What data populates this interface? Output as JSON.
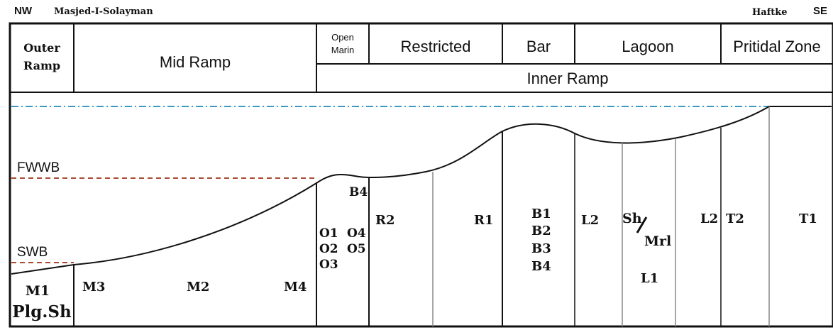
{
  "header": {
    "nw": "NW",
    "se": "SE",
    "left_location": "Masjed-I-Solayman",
    "right_location": "Haftke"
  },
  "zones": {
    "outer_ramp": [
      "Outer",
      "Ramp"
    ],
    "mid_ramp": "Mid Ramp",
    "open_marin": [
      "Open",
      "Marin"
    ],
    "restricted": "Restricted",
    "bar": "Bar",
    "lagoon": "Lagoon",
    "peritidal": "Pritidal Zone",
    "inner_ramp": "Inner Ramp"
  },
  "levels": {
    "fwwb": "FWWB",
    "swb": "SWB"
  },
  "facies": {
    "m1": "M1",
    "plg_sh": "Plg.Sh",
    "m3": "M3",
    "m2": "M2",
    "m4": "M4",
    "o1": "O1",
    "o2": "O2",
    "o3": "O3",
    "b4_top": "B4",
    "o4": "O4",
    "o5": "O5",
    "r2": "R2",
    "r1": "R1",
    "b1": "B1",
    "b2": "B2",
    "b3": "B3",
    "b4": "B4",
    "l2_left": "L2",
    "sh": "Sh",
    "mrl": "Mrl",
    "l1": "L1",
    "l2_right": "L2",
    "t2": "T2",
    "t1": "T1"
  },
  "colors": {
    "sea_level": "#3a9bc2",
    "fwwb_line": "#a84a32",
    "swb_line": "#a84a32",
    "lines": "#111111",
    "dividers": "#888888"
  }
}
